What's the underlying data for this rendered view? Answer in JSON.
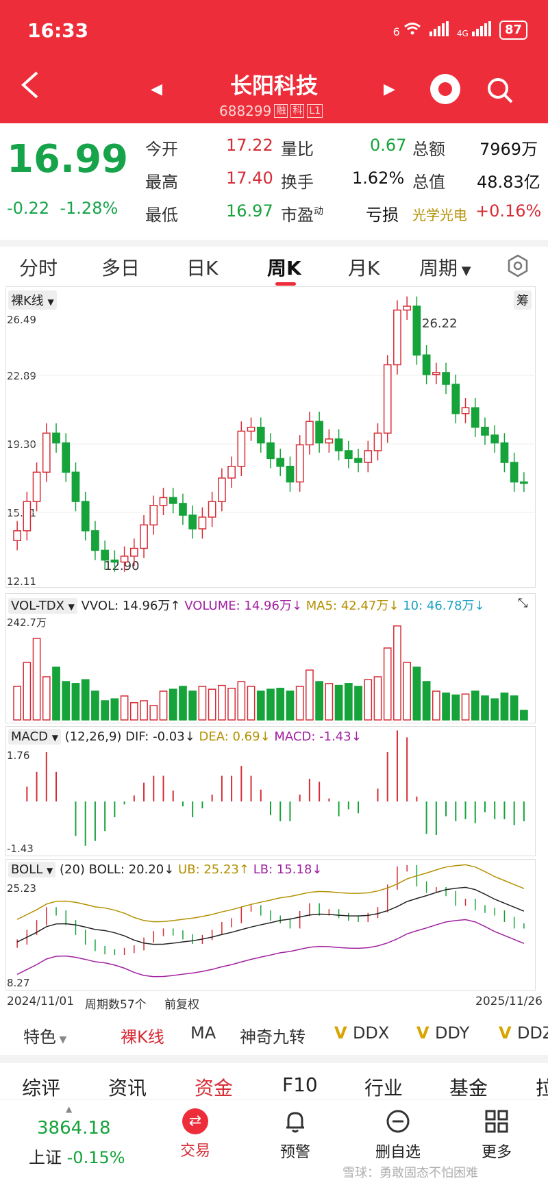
{
  "status": {
    "time": "16:33",
    "network": "6",
    "net2": "4G",
    "battery": "87"
  },
  "header": {
    "title": "长阳科技",
    "code": "688299",
    "tags": [
      "融",
      "科",
      "L1"
    ]
  },
  "quote": {
    "price": "16.99",
    "change": "-0.22",
    "pct": "-1.28%",
    "rows": [
      {
        "l1": "今开",
        "v1": "17.22",
        "l2": "量比",
        "v2": "0.67",
        "l3": "总额",
        "v3": "7969万"
      },
      {
        "l1": "最高",
        "v1": "17.40",
        "l2": "换手",
        "v2": "1.62%",
        "l3": "总值",
        "v3": "48.83亿"
      },
      {
        "l1": "最低",
        "v1": "16.97",
        "l2": "市盈",
        "v2sup": "动",
        "v2": "亏损",
        "l3": "光学光电",
        "v3": "+0.16%"
      }
    ]
  },
  "tabs": [
    "分时",
    "多日",
    "日K",
    "周K",
    "月K",
    "周期"
  ],
  "kline": {
    "selector": "裸K线",
    "chip": "筹",
    "y_labels": [
      "26.49",
      "22.89",
      "19.30",
      "15.71",
      "12.11"
    ],
    "hi_label": "26.22",
    "lo_label": "12.90"
  },
  "vol": {
    "name": "VOL-TDX",
    "vvol": "VVOL: 14.96万↑",
    "volume": "VOLUME: 14.96万↓",
    "ma5": "MA5: 42.47万↓",
    "ma10": "10: 46.78万↓",
    "ymax": "242.7万"
  },
  "macd": {
    "name": "MACD",
    "params": "(12,26,9)",
    "dif": "DIF: -0.03↓",
    "dea": "DEA: 0.69↓",
    "macd": "MACD: -1.43↓",
    "ymax": "1.76",
    "ymin": "-1.43"
  },
  "boll": {
    "name": "BOLL",
    "params": "(20)",
    "boll": "BOLL: 20.20↓",
    "ub": "UB: 25.23↑",
    "lb": "LB: 15.18↓",
    "ymax": "25.23",
    "ymin": "8.27"
  },
  "footer_axis": {
    "start": "2024/11/01",
    "period": "周期数57个",
    "adj": "前复权",
    "end": "2025/11/26"
  },
  "indicators": [
    "特色",
    "裸K线",
    "MA",
    "神奇九转",
    "DDX",
    "DDY",
    "DDZ"
  ],
  "info_tabs": [
    "综评",
    "资讯",
    "资金",
    "F10",
    "行业",
    "基金",
    "拉"
  ],
  "nav": {
    "index_value": "3864.18",
    "index_name": "上证",
    "index_pct": "-0.15%",
    "items": [
      "交易",
      "预警",
      "删自选",
      "更多"
    ],
    "watermark": "雪球：勇敢固态不怕困难"
  },
  "colors": {
    "brand": "#ee2d3a",
    "up": "#d62c36",
    "down": "#15a33a"
  }
}
